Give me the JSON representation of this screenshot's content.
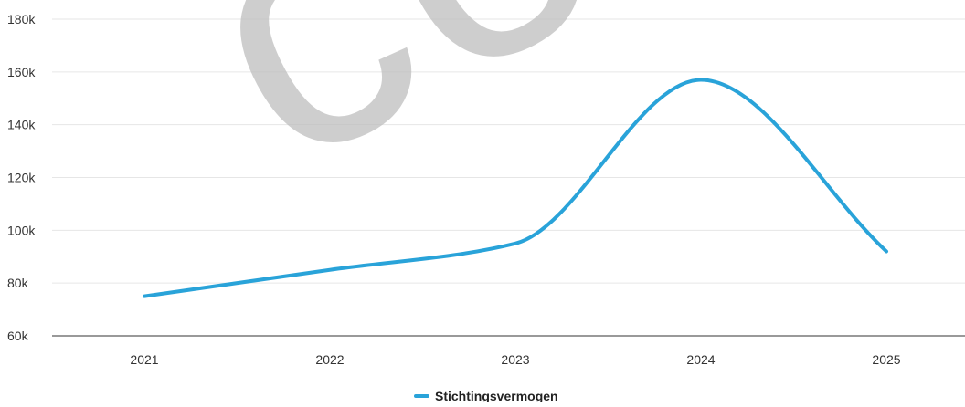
{
  "watermark_text": "co",
  "colors": {
    "series": "#29a3d9",
    "grid": "#e6e6e6",
    "axis": "#333333",
    "watermark": "#bebebe"
  },
  "chart_data": {
    "type": "line",
    "title": "",
    "xlabel": "",
    "ylabel": "",
    "categories": [
      "2021",
      "2022",
      "2023",
      "2024",
      "2025"
    ],
    "ylim": [
      60000,
      180000
    ],
    "yticks": [
      60000,
      80000,
      100000,
      120000,
      140000,
      160000,
      180000
    ],
    "ytick_labels": [
      "60k",
      "80k",
      "100k",
      "120k",
      "140k",
      "160k",
      "180k"
    ],
    "grid": true,
    "legend": "bottom-center",
    "smooth": true,
    "series": [
      {
        "name": "Stichtingsvermogen",
        "values": [
          75000,
          85000,
          95000,
          157000,
          92000
        ]
      }
    ]
  }
}
